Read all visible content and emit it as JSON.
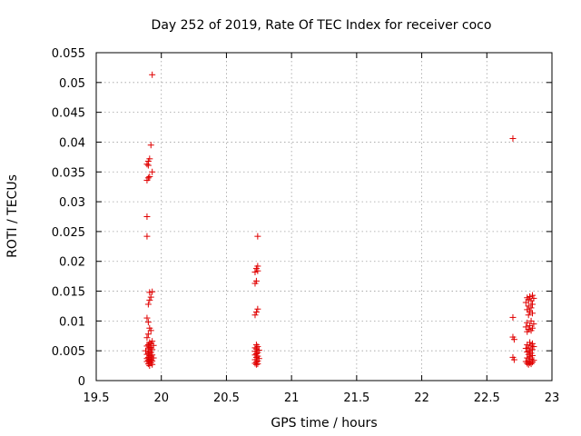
{
  "chart_data": {
    "type": "scatter",
    "title": "Day 252 of 2019, Rate Of TEC Index for receiver coco",
    "xlabel": "GPS time / hours",
    "ylabel": "ROTI / TECUs",
    "xlim": [
      19.5,
      23
    ],
    "ylim": [
      0,
      0.055
    ],
    "xticks": [
      19.5,
      20,
      20.5,
      21,
      21.5,
      22,
      22.5,
      23
    ],
    "xtick_labels": [
      "19.5",
      "20",
      "20.5",
      "21",
      "21.5",
      "22",
      "22.5",
      "23"
    ],
    "yticks": [
      0,
      0.005,
      0.01,
      0.015,
      0.02,
      0.025,
      0.03,
      0.035,
      0.04,
      0.045,
      0.05,
      0.055
    ],
    "ytick_labels": [
      "0",
      "0.005",
      "0.01",
      "0.015",
      "0.02",
      "0.025",
      "0.03",
      "0.035",
      "0.04",
      "0.045",
      "0.05",
      "0.055"
    ],
    "grid": true,
    "marker": "+",
    "color": "#e00000",
    "series": [
      {
        "name": "ROTI",
        "points": [
          [
            19.93,
            0.0513
          ],
          [
            19.92,
            0.0395
          ],
          [
            19.91,
            0.0372
          ],
          [
            19.9,
            0.0368
          ],
          [
            19.89,
            0.0363
          ],
          [
            19.9,
            0.0361
          ],
          [
            19.93,
            0.035
          ],
          [
            19.91,
            0.0342
          ],
          [
            19.9,
            0.034
          ],
          [
            19.89,
            0.0336
          ],
          [
            19.89,
            0.0275
          ],
          [
            19.89,
            0.0242
          ],
          [
            19.91,
            0.0148
          ],
          [
            19.93,
            0.0149
          ],
          [
            19.92,
            0.014
          ],
          [
            19.91,
            0.0135
          ],
          [
            19.9,
            0.0128
          ],
          [
            19.89,
            0.0105
          ],
          [
            19.9,
            0.0098
          ],
          [
            19.91,
            0.0088
          ],
          [
            19.92,
            0.0084
          ],
          [
            19.9,
            0.0078
          ],
          [
            19.89,
            0.0072
          ],
          [
            19.93,
            0.0066
          ],
          [
            19.91,
            0.0064
          ],
          [
            19.92,
            0.0062
          ],
          [
            19.9,
            0.006
          ],
          [
            19.94,
            0.0059
          ],
          [
            19.89,
            0.0058
          ],
          [
            19.91,
            0.0056
          ],
          [
            19.92,
            0.0055
          ],
          [
            19.9,
            0.0053
          ],
          [
            19.93,
            0.0052
          ],
          [
            19.88,
            0.005
          ],
          [
            19.91,
            0.0049
          ],
          [
            19.92,
            0.0047
          ],
          [
            19.9,
            0.0046
          ],
          [
            19.89,
            0.0044
          ],
          [
            19.93,
            0.0043
          ],
          [
            19.91,
            0.0042
          ],
          [
            19.92,
            0.004
          ],
          [
            19.9,
            0.0039
          ],
          [
            19.94,
            0.0038
          ],
          [
            19.89,
            0.0037
          ],
          [
            19.91,
            0.0036
          ],
          [
            19.92,
            0.0035
          ],
          [
            19.9,
            0.0034
          ],
          [
            19.93,
            0.0033
          ],
          [
            19.89,
            0.0032
          ],
          [
            19.91,
            0.0031
          ],
          [
            19.92,
            0.003
          ],
          [
            19.9,
            0.0028
          ],
          [
            19.93,
            0.0027
          ],
          [
            19.91,
            0.0025
          ],
          [
            20.74,
            0.0242
          ],
          [
            20.74,
            0.0192
          ],
          [
            20.73,
            0.0188
          ],
          [
            20.74,
            0.0184
          ],
          [
            20.72,
            0.0182
          ],
          [
            20.73,
            0.0167
          ],
          [
            20.72,
            0.0163
          ],
          [
            20.74,
            0.012
          ],
          [
            20.73,
            0.0115
          ],
          [
            20.72,
            0.011
          ],
          [
            20.73,
            0.006
          ],
          [
            20.74,
            0.0057
          ],
          [
            20.72,
            0.0055
          ],
          [
            20.73,
            0.0053
          ],
          [
            20.75,
            0.0051
          ],
          [
            20.72,
            0.0049
          ],
          [
            20.74,
            0.0047
          ],
          [
            20.73,
            0.0045
          ],
          [
            20.72,
            0.0043
          ],
          [
            20.74,
            0.0041
          ],
          [
            20.73,
            0.0039
          ],
          [
            20.75,
            0.0037
          ],
          [
            20.72,
            0.0035
          ],
          [
            20.74,
            0.0033
          ],
          [
            20.73,
            0.0031
          ],
          [
            20.72,
            0.0029
          ],
          [
            20.74,
            0.0028
          ],
          [
            20.73,
            0.0027
          ],
          [
            22.7,
            0.0406
          ],
          [
            22.7,
            0.0106
          ],
          [
            22.7,
            0.0073
          ],
          [
            22.71,
            0.0069
          ],
          [
            22.7,
            0.0039
          ],
          [
            22.71,
            0.0035
          ],
          [
            22.85,
            0.0143
          ],
          [
            22.83,
            0.0141
          ],
          [
            22.81,
            0.0139
          ],
          [
            22.86,
            0.0138
          ],
          [
            22.82,
            0.0136
          ],
          [
            22.84,
            0.0134
          ],
          [
            22.8,
            0.0131
          ],
          [
            22.85,
            0.0128
          ],
          [
            22.82,
            0.0125
          ],
          [
            22.84,
            0.0122
          ],
          [
            22.81,
            0.0119
          ],
          [
            22.83,
            0.0116
          ],
          [
            22.85,
            0.0113
          ],
          [
            22.82,
            0.011
          ],
          [
            22.84,
            0.01
          ],
          [
            22.81,
            0.0097
          ],
          [
            22.86,
            0.0095
          ],
          [
            22.83,
            0.0092
          ],
          [
            22.8,
            0.009
          ],
          [
            22.85,
            0.0088
          ],
          [
            22.82,
            0.0086
          ],
          [
            22.84,
            0.0084
          ],
          [
            22.81,
            0.0082
          ],
          [
            22.83,
            0.0064
          ],
          [
            22.85,
            0.0062
          ],
          [
            22.81,
            0.006
          ],
          [
            22.84,
            0.0058
          ],
          [
            22.86,
            0.0057
          ],
          [
            22.82,
            0.0055
          ],
          [
            22.8,
            0.0054
          ],
          [
            22.85,
            0.0052
          ],
          [
            22.83,
            0.005
          ],
          [
            22.81,
            0.0048
          ],
          [
            22.84,
            0.0046
          ],
          [
            22.82,
            0.0044
          ],
          [
            22.85,
            0.0042
          ],
          [
            22.83,
            0.004
          ],
          [
            22.81,
            0.0038
          ],
          [
            22.84,
            0.0036
          ],
          [
            22.86,
            0.0034
          ],
          [
            22.82,
            0.0033
          ],
          [
            22.8,
            0.0032
          ],
          [
            22.85,
            0.0031
          ],
          [
            22.83,
            0.003
          ],
          [
            22.81,
            0.0029
          ],
          [
            22.84,
            0.0028
          ],
          [
            22.82,
            0.0027
          ]
        ]
      }
    ]
  }
}
